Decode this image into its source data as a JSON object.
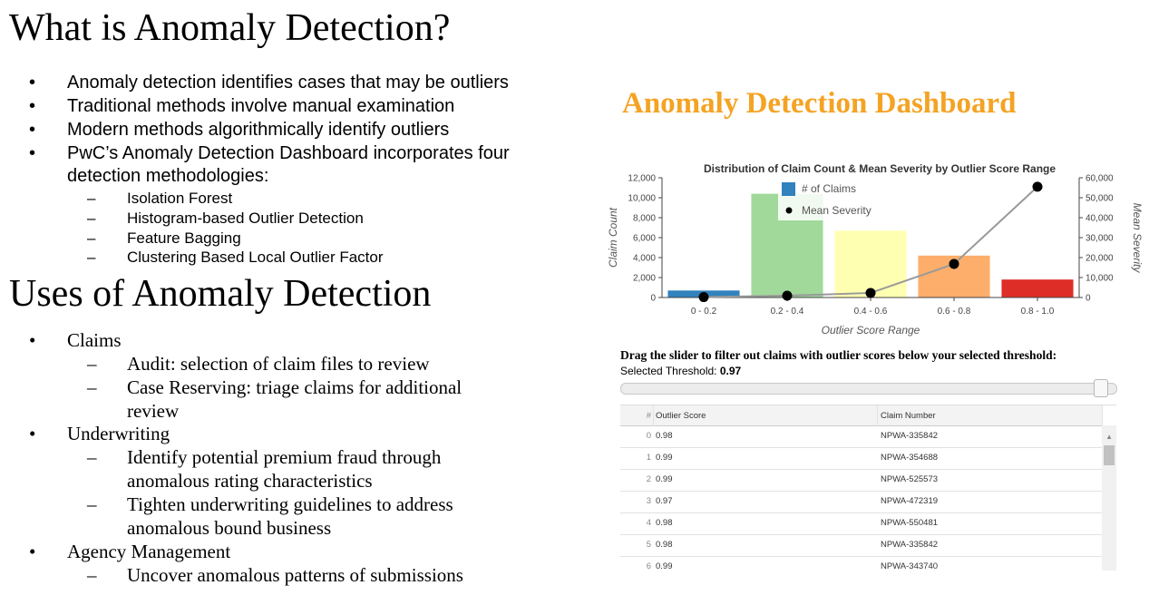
{
  "section1": {
    "title": "What is Anomaly Detection?",
    "bullets": [
      "Anomaly detection identifies cases that may be outliers",
      "Traditional methods involve manual examination",
      "Modern methods algorithmically identify outliers"
    ],
    "bullet4_line1": "PwC’s Anomaly Detection Dashboard incorporates four",
    "bullet4_line2": "detection methodologies:",
    "methods": [
      "Isolation Forest",
      "Histogram-based Outlier Detection",
      "Feature Bagging",
      "Clustering Based Local Outlier Factor"
    ]
  },
  "section2": {
    "title": "Uses of Anomaly Detection",
    "claims": "Claims",
    "claims_sub1": "Audit: selection of claim files to review",
    "claims_sub2_line1": "Case Reserving: triage claims for additional",
    "claims_sub2_line2": "review",
    "underwriting": "Underwriting",
    "uw_sub1_line1": "Identify potential premium fraud through",
    "uw_sub1_line2": "anomalous rating characteristics",
    "uw_sub2_line1": "Tighten underwriting guidelines to address",
    "uw_sub2_line2": "anomalous bound business",
    "agency": "Agency Management",
    "agency_sub1": "Uncover anomalous patterns of submissions"
  },
  "markers": {
    "bullet": "•",
    "dash": "–"
  },
  "dashboard": {
    "title": "Anomaly Detection Dashboard",
    "title_color": "#f4a323",
    "slider_instruction": "Drag the slider to filter out claims with outlier scores below your selected threshold:",
    "threshold_label": "Selected Threshold: ",
    "threshold_value": "0.97",
    "slider_value": 0.97,
    "table": {
      "headers": {
        "index": "#",
        "score": "Outlier Score",
        "claim": "Claim Number"
      },
      "rows": [
        {
          "index": "0",
          "score": "0.98",
          "claim": "NPWA-335842"
        },
        {
          "index": "1",
          "score": "0.99",
          "claim": "NPWA-354688"
        },
        {
          "index": "2",
          "score": "0.99",
          "claim": "NPWA-525573"
        },
        {
          "index": "3",
          "score": "0.97",
          "claim": "NPWA-472319"
        },
        {
          "index": "4",
          "score": "0.98",
          "claim": "NPWA-550481"
        },
        {
          "index": "5",
          "score": "0.98",
          "claim": "NPWA-335842"
        },
        {
          "index": "6",
          "score": "0.99",
          "claim": "NPWA-343740"
        }
      ]
    }
  },
  "chart_data": {
    "type": "bar",
    "title": "Distribution of Claim Count & Mean Severity by Outlier Score Range",
    "xlabel": "Outlier Score Range",
    "ylabel": "Claim Count",
    "y2label": "Mean Severity",
    "categories": [
      "0 - 0.2",
      "0.2 - 0.4",
      "0.4 - 0.6",
      "0.6 - 0.8",
      "0.8 - 1.0"
    ],
    "series": [
      {
        "name": "# of Claims",
        "kind": "bar",
        "axis": "left",
        "values": [
          700,
          10400,
          6700,
          4200,
          1800
        ],
        "colors": [
          "#3182bd",
          "#a1d99b",
          "#ffffb2",
          "#fdae6b",
          "#de2d26"
        ]
      },
      {
        "name": "Mean Severity",
        "kind": "line-markers",
        "axis": "right",
        "values": [
          200,
          900,
          2300,
          16800,
          55500
        ],
        "color": "#000000",
        "line_color": "#999999"
      }
    ],
    "ylim": [
      0,
      12000
    ],
    "y2lim": [
      0,
      60000
    ],
    "yticks": [
      "0",
      "2,000",
      "4,000",
      "6,000",
      "8,000",
      "10,000",
      "12,000"
    ],
    "y2ticks": [
      "0",
      "10,000",
      "20,000",
      "30,000",
      "40,000",
      "50,000",
      "60,000"
    ],
    "legend_position": "top-center",
    "grid": false
  }
}
